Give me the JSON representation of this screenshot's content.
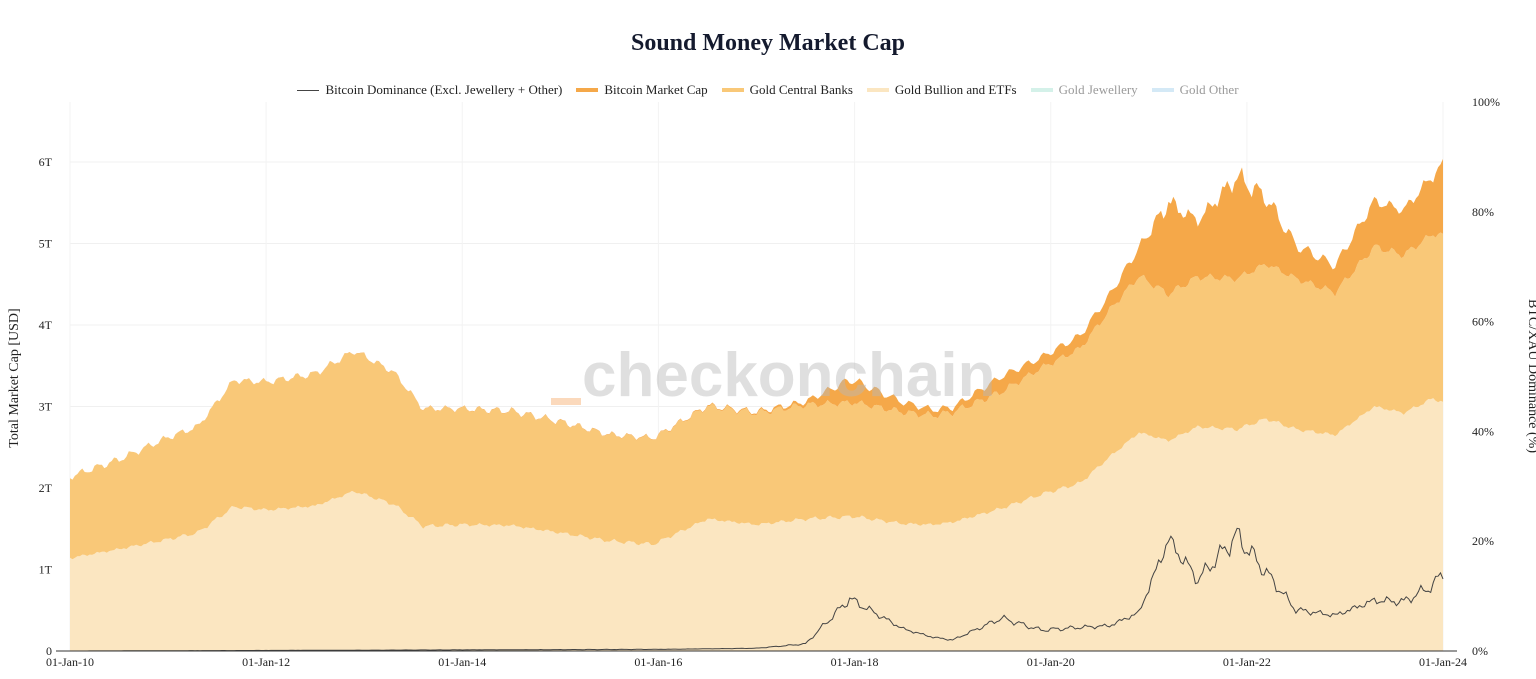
{
  "chart_data": {
    "type": "area",
    "title": "Sound Money Market Cap",
    "ylabel_left": "Total Market Cap [USD]",
    "ylabel_right": "BTC/XAU Dominance (%)",
    "watermark": "checkonchain",
    "x_ticks": [
      "01-Jan-10",
      "01-Jan-12",
      "01-Jan-14",
      "01-Jan-16",
      "01-Jan-18",
      "01-Jan-20",
      "01-Jan-22",
      "01-Jan-24"
    ],
    "x_range": [
      "2010-01-01",
      "2024-01-01"
    ],
    "y_left_ticks": [
      "0",
      "1T",
      "2T",
      "3T",
      "4T",
      "5T",
      "6T"
    ],
    "y_left_range": [
      0,
      6.6
    ],
    "y_right_ticks": [
      "0%",
      "20%",
      "40%",
      "60%",
      "80%",
      "100%"
    ],
    "y_right_range": [
      0,
      100
    ],
    "legend_position": "top-center",
    "grid": true,
    "colors": {
      "dominance": "#444444",
      "bitcoin": "#f5a849",
      "central_banks": "#f9c878",
      "bullion": "#fbe6c1",
      "jewellery": "#c9ede4",
      "other": "#c9e4f4"
    },
    "legend": [
      {
        "key": "dominance",
        "label": "Bitcoin Dominance (Excl. Jewellery + Other)",
        "kind": "line",
        "faded": false
      },
      {
        "key": "bitcoin",
        "label": "Bitcoin Market Cap",
        "kind": "area",
        "faded": false
      },
      {
        "key": "central_banks",
        "label": "Gold Central Banks",
        "kind": "area",
        "faded": false
      },
      {
        "key": "bullion",
        "label": "Gold Bullion and ETFs",
        "kind": "area",
        "faded": false
      },
      {
        "key": "jewellery",
        "label": "Gold Jewellery",
        "kind": "area",
        "faded": true
      },
      {
        "key": "other",
        "label": "Gold Other",
        "kind": "area",
        "faded": true
      }
    ],
    "series": [
      {
        "name": "Gold Bullion and ETFs",
        "unit": "USD trillions",
        "x": [
          2010.0,
          2010.5,
          2011.0,
          2011.3,
          2011.67,
          2012.0,
          2012.5,
          2012.9,
          2013.3,
          2013.6,
          2014.0,
          2014.5,
          2015.0,
          2015.5,
          2015.95,
          2016.5,
          2017.0,
          2017.5,
          2018.0,
          2018.5,
          2018.8,
          2019.0,
          2019.5,
          2019.9,
          2020.3,
          2020.6,
          2020.9,
          2021.2,
          2021.5,
          2021.9,
          2022.2,
          2022.5,
          2022.9,
          2023.3,
          2023.6,
          2023.9,
          2024.0
        ],
        "values": [
          1.14,
          1.25,
          1.37,
          1.45,
          1.77,
          1.73,
          1.78,
          1.96,
          1.8,
          1.53,
          1.55,
          1.54,
          1.45,
          1.35,
          1.31,
          1.62,
          1.55,
          1.62,
          1.65,
          1.56,
          1.55,
          1.58,
          1.75,
          1.92,
          2.06,
          2.38,
          2.68,
          2.58,
          2.75,
          2.72,
          2.85,
          2.72,
          2.65,
          3.0,
          2.92,
          3.1,
          3.05
        ]
      },
      {
        "name": "Gold Central Banks",
        "unit": "USD trillions",
        "x": [
          2010.0,
          2010.5,
          2011.0,
          2011.3,
          2011.67,
          2012.0,
          2012.5,
          2012.9,
          2013.3,
          2013.6,
          2014.0,
          2014.5,
          2015.0,
          2015.5,
          2015.95,
          2016.5,
          2017.0,
          2017.5,
          2018.0,
          2018.5,
          2018.8,
          2019.0,
          2019.5,
          2019.9,
          2020.3,
          2020.6,
          2020.9,
          2021.2,
          2021.5,
          2021.9,
          2022.2,
          2022.5,
          2022.9,
          2023.3,
          2023.6,
          2023.9,
          2024.0
        ],
        "values": [
          1.0,
          1.1,
          1.25,
          1.3,
          1.55,
          1.57,
          1.62,
          1.72,
          1.62,
          1.44,
          1.42,
          1.4,
          1.36,
          1.3,
          1.3,
          1.38,
          1.37,
          1.4,
          1.4,
          1.37,
          1.34,
          1.35,
          1.43,
          1.55,
          1.65,
          1.8,
          1.92,
          1.8,
          1.84,
          1.85,
          1.9,
          1.85,
          1.75,
          1.96,
          1.94,
          2.02,
          2.05
        ]
      },
      {
        "name": "Bitcoin Market Cap",
        "unit": "USD trillions",
        "x": [
          2010.0,
          2013.9,
          2016.0,
          2017.0,
          2017.5,
          2017.95,
          2018.5,
          2018.8,
          2019.0,
          2019.5,
          2019.9,
          2020.3,
          2020.6,
          2020.9,
          2021.2,
          2021.5,
          2021.9,
          2022.2,
          2022.5,
          2022.9,
          2023.3,
          2023.6,
          2023.9,
          2024.0
        ],
        "values": [
          0,
          0.005,
          0.007,
          0.015,
          0.04,
          0.28,
          0.12,
          0.07,
          0.06,
          0.19,
          0.13,
          0.16,
          0.19,
          0.35,
          1.12,
          0.69,
          1.25,
          0.81,
          0.41,
          0.33,
          0.56,
          0.55,
          0.72,
          0.85
        ]
      },
      {
        "name": "Bitcoin Dominance (Excl. Jewellery + Other)",
        "unit": "percent",
        "axis": "right",
        "x": [
          2010.0,
          2013.9,
          2016.0,
          2017.0,
          2017.5,
          2017.95,
          2018.5,
          2018.8,
          2019.0,
          2019.5,
          2019.9,
          2020.3,
          2020.6,
          2020.9,
          2021.2,
          2021.5,
          2021.9,
          2022.2,
          2022.5,
          2022.9,
          2023.3,
          2023.6,
          2023.9,
          2024.0
        ],
        "values": [
          0,
          0.2,
          0.3,
          0.5,
          1.3,
          9.5,
          4.0,
          2.5,
          2.0,
          6.0,
          3.8,
          4.3,
          4.6,
          7.0,
          20.3,
          13.0,
          21.0,
          14.2,
          7.5,
          6.5,
          9.2,
          9.0,
          12.0,
          14.2
        ]
      }
    ]
  }
}
